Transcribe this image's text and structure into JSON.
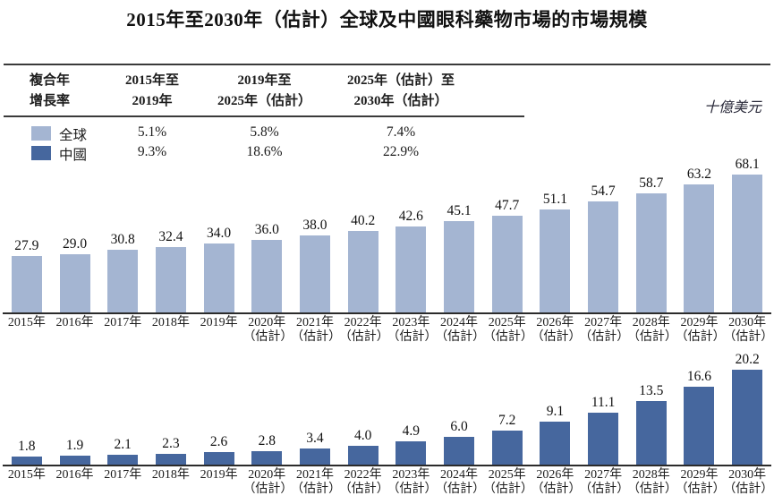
{
  "title": "2015年至2030年（估計）全球及中國眼科藥物市場的市場規模",
  "unit_label": "十億美元",
  "colors": {
    "global_bar": "#a4b5d2",
    "china_bar": "#46679e",
    "axis": "#2b2b2b",
    "rule": "#3a3a3a"
  },
  "cagr_table": {
    "corner_label_line1": "複合年",
    "corner_label_line2": "增長率",
    "columns": [
      {
        "line1": "2015年至",
        "line2": "2019年"
      },
      {
        "line1": "2019年至",
        "line2": "2025年（估計）"
      },
      {
        "line1": "2025年（估計）至",
        "line2": "2030年（估計）"
      }
    ],
    "rows": [
      {
        "label": "全球",
        "swatch": "#a4b5d2",
        "values": [
          "5.1%",
          "5.8%",
          "7.4%"
        ]
      },
      {
        "label": "中國",
        "swatch": "#46679e",
        "values": [
          "9.3%",
          "18.6%",
          "22.9%"
        ]
      }
    ]
  },
  "chart_data": [
    {
      "type": "bar",
      "series_name": "全球",
      "unit": "十億美元",
      "color": "#a4b5d2",
      "categories": [
        "2015年",
        "2016年",
        "2017年",
        "2018年",
        "2019年",
        "2020年（估計）",
        "2021年（估計）",
        "2022年（估計）",
        "2023年（估計）",
        "2024年（估計）",
        "2025年（估計）",
        "2026年（估計）",
        "2027年（估計）",
        "2028年（估計）",
        "2029年（估計）",
        "2030年（估計）"
      ],
      "values": [
        27.9,
        29.0,
        30.8,
        32.4,
        34.0,
        36.0,
        38.0,
        40.2,
        42.6,
        45.1,
        47.7,
        51.1,
        54.7,
        58.7,
        63.2,
        68.1
      ],
      "labels": [
        "27.9",
        "29.0",
        "30.8",
        "32.4",
        "34.0",
        "36.0",
        "38.0",
        "40.2",
        "42.6",
        "45.1",
        "47.7",
        "51.1",
        "54.7",
        "58.7",
        "63.2",
        "68.1"
      ],
      "ylim": [
        0,
        70
      ],
      "grid": false,
      "legend_position": "top-left"
    },
    {
      "type": "bar",
      "series_name": "中國",
      "unit": "十億美元",
      "color": "#46679e",
      "categories": [
        "2015年",
        "2016年",
        "2017年",
        "2018年",
        "2019年",
        "2020年（估計）",
        "2021年（估計）",
        "2022年（估計）",
        "2023年（估計）",
        "2024年（估計）",
        "2025年（估計）",
        "2026年（估計）",
        "2027年（估計）",
        "2028年（估計）",
        "2029年（估計）",
        "2030年（估計）"
      ],
      "values": [
        1.8,
        1.9,
        2.1,
        2.3,
        2.6,
        2.8,
        3.4,
        4.0,
        4.9,
        6.0,
        7.2,
        9.1,
        11.1,
        13.5,
        16.6,
        20.2
      ],
      "labels": [
        "1.8",
        "1.9",
        "2.1",
        "2.3",
        "2.6",
        "2.8",
        "3.4",
        "4.0",
        "4.9",
        "6.0",
        "7.2",
        "9.1",
        "11.1",
        "13.5",
        "16.6",
        "20.2"
      ],
      "ylim": [
        0,
        21
      ],
      "grid": false,
      "legend_position": "top-left"
    }
  ]
}
